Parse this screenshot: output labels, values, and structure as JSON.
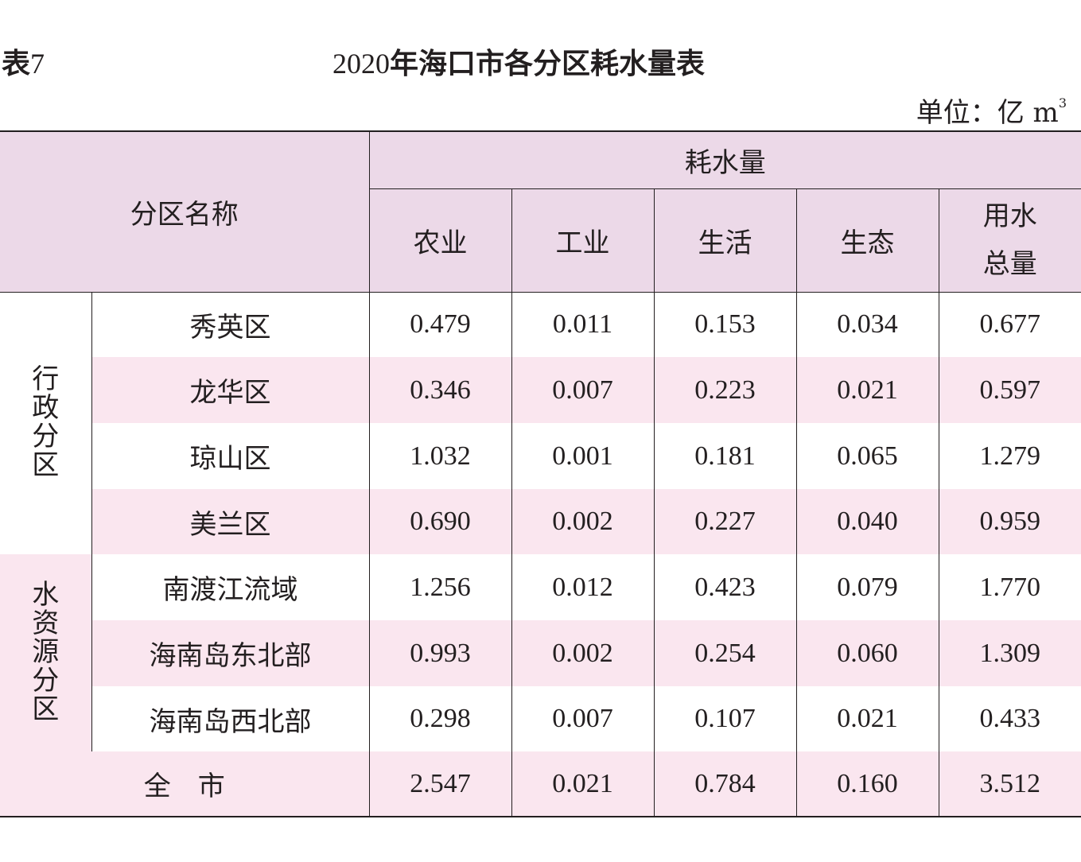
{
  "table_label": {
    "prefix": "表",
    "number": "7"
  },
  "title": {
    "year": "2020",
    "text": "年海口市各分区耗水量表"
  },
  "unit": {
    "text": "单位：亿 m",
    "sup": "3"
  },
  "header": {
    "region_name": "分区名称",
    "consumption": "耗水量",
    "columns": [
      "农业",
      "工业",
      "生活",
      "生态"
    ],
    "total_line1": "用水",
    "total_line2": "总量"
  },
  "groups": {
    "admin": "行政分区",
    "water": "水资源分区"
  },
  "rows": [
    {
      "name": "秀英区",
      "values": [
        "0.479",
        "0.011",
        "0.153",
        "0.034",
        "0.677"
      ]
    },
    {
      "name": "龙华区",
      "values": [
        "0.346",
        "0.007",
        "0.223",
        "0.021",
        "0.597"
      ]
    },
    {
      "name": "琼山区",
      "values": [
        "1.032",
        "0.001",
        "0.181",
        "0.065",
        "1.279"
      ]
    },
    {
      "name": "美兰区",
      "values": [
        "0.690",
        "0.002",
        "0.227",
        "0.040",
        "0.959"
      ]
    },
    {
      "name": "南渡江流域",
      "values": [
        "1.256",
        "0.012",
        "0.423",
        "0.079",
        "1.770"
      ]
    },
    {
      "name": "海南岛东北部",
      "values": [
        "0.993",
        "0.002",
        "0.254",
        "0.060",
        "1.309"
      ]
    },
    {
      "name": "海南岛西北部",
      "values": [
        "0.298",
        "0.007",
        "0.107",
        "0.021",
        "0.433"
      ]
    }
  ],
  "total": {
    "name": "全　市",
    "values": [
      "2.547",
      "0.021",
      "0.784",
      "0.160",
      "3.512"
    ]
  }
}
